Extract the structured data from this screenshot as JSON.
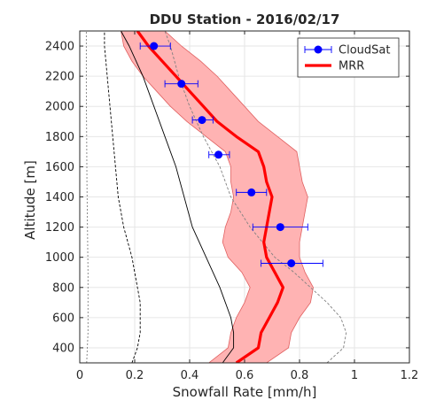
{
  "chart_data": {
    "type": "line",
    "title": "DDU Station - 2016/02/17",
    "xlabel": "Snowfall Rate [mm/h]",
    "ylabel": "Altitude [m]",
    "xlim": [
      0,
      1.2
    ],
    "ylim": [
      300,
      2500
    ],
    "x_ticks": [
      0,
      0.2,
      0.4,
      0.6,
      0.8,
      1,
      1.2
    ],
    "y_ticks": [
      400,
      600,
      800,
      1000,
      1200,
      1400,
      1600,
      1800,
      2000,
      2200,
      2400
    ],
    "grid": true,
    "legend": {
      "position": "top-right",
      "entries": [
        "CloudSat",
        "MRR"
      ]
    },
    "colors": {
      "cloudsat": "#0000ff",
      "mrr": "#ff0000",
      "band": "#ffb3b3",
      "band_edge": "#e06060",
      "other": "#000000",
      "other_light": "#808080"
    },
    "series": [
      {
        "name": "CloudSat",
        "style": "points-with-horizontal-error-bars",
        "points": [
          {
            "y": 2400,
            "x": 0.27,
            "xmin": 0.22,
            "xmax": 0.33
          },
          {
            "y": 2150,
            "x": 0.37,
            "xmin": 0.31,
            "xmax": 0.43
          },
          {
            "y": 1910,
            "x": 0.445,
            "xmin": 0.41,
            "xmax": 0.485
          },
          {
            "y": 1680,
            "x": 0.505,
            "xmin": 0.47,
            "xmax": 0.545
          },
          {
            "y": 1430,
            "x": 0.625,
            "xmin": 0.57,
            "xmax": 0.68
          },
          {
            "y": 1200,
            "x": 0.73,
            "xmin": 0.63,
            "xmax": 0.83
          },
          {
            "y": 960,
            "x": 0.77,
            "xmin": 0.66,
            "xmax": 0.885
          }
        ]
      },
      {
        "name": "MRR",
        "style": "thick-line-with-band",
        "y": [
          300,
          400,
          500,
          600,
          700,
          800,
          900,
          1000,
          1100,
          1200,
          1300,
          1400,
          1500,
          1600,
          1700,
          1800,
          1900,
          2000,
          2100,
          2200,
          2300,
          2400,
          2500
        ],
        "x": [
          0.57,
          0.65,
          0.66,
          0.69,
          0.72,
          0.74,
          0.71,
          0.68,
          0.67,
          0.68,
          0.69,
          0.7,
          0.68,
          0.67,
          0.65,
          0.57,
          0.5,
          0.45,
          0.4,
          0.35,
          0.3,
          0.25,
          0.21
        ],
        "band_low": [
          0.47,
          0.54,
          0.55,
          0.57,
          0.6,
          0.62,
          0.59,
          0.54,
          0.52,
          0.53,
          0.55,
          0.56,
          0.55,
          0.55,
          0.53,
          0.46,
          0.39,
          0.33,
          0.28,
          0.23,
          0.19,
          0.16,
          0.15
        ],
        "band_high": [
          0.68,
          0.76,
          0.77,
          0.8,
          0.84,
          0.85,
          0.82,
          0.8,
          0.8,
          0.81,
          0.82,
          0.83,
          0.81,
          0.8,
          0.79,
          0.72,
          0.65,
          0.6,
          0.55,
          0.5,
          0.44,
          0.37,
          0.31
        ]
      },
      {
        "style": "thin-solid-black",
        "y": [
          300,
          400,
          500,
          600,
          700,
          800,
          1000,
          1200,
          1400,
          1600,
          1800,
          2000,
          2200,
          2400,
          2500
        ],
        "x": [
          0.52,
          0.56,
          0.56,
          0.55,
          0.53,
          0.51,
          0.46,
          0.41,
          0.38,
          0.35,
          0.31,
          0.27,
          0.23,
          0.18,
          0.15
        ]
      },
      {
        "style": "thin-dashed-black",
        "y": [
          300,
          400,
          500,
          600,
          700,
          800,
          1000,
          1200,
          1400,
          1600,
          1800,
          2000,
          2200,
          2400,
          2500
        ],
        "x": [
          0.19,
          0.21,
          0.22,
          0.22,
          0.22,
          0.21,
          0.19,
          0.16,
          0.14,
          0.13,
          0.12,
          0.11,
          0.1,
          0.09,
          0.09
        ]
      },
      {
        "style": "thin-dashed-gray",
        "y": [
          300,
          400,
          500,
          600,
          700,
          800,
          900,
          1000,
          1200,
          1400,
          1600,
          1800,
          2000,
          2200,
          2400,
          2500
        ],
        "x": [
          0.9,
          0.96,
          0.97,
          0.95,
          0.9,
          0.84,
          0.78,
          0.71,
          0.62,
          0.55,
          0.51,
          0.45,
          0.4,
          0.36,
          0.33,
          0.31
        ]
      },
      {
        "style": "thin-dotted-gray",
        "y": [
          300,
          500,
          700,
          900,
          1200,
          1500,
          1800,
          2100,
          2400,
          2500
        ],
        "x": [
          0.025,
          0.03,
          0.03,
          0.03,
          0.028,
          0.026,
          0.025,
          0.024,
          0.024,
          0.024
        ]
      }
    ]
  }
}
